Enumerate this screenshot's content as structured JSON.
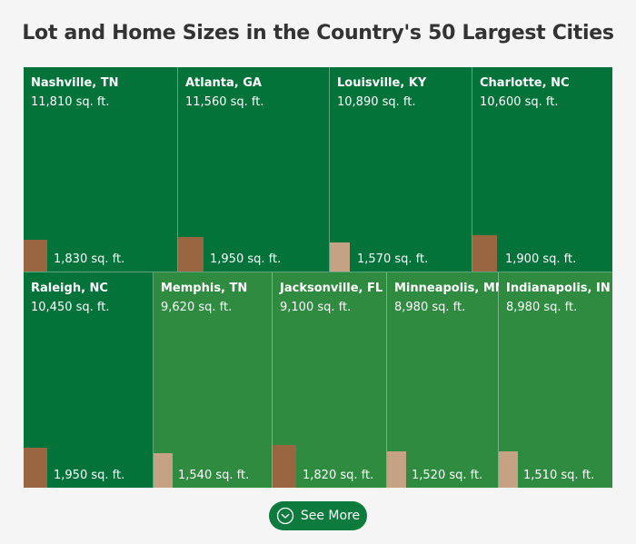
{
  "title": "Lot and Home Sizes in the Country's 50 Largest Cities",
  "colors": {
    "dark_green": "#03733a",
    "light_green": "#2e8b40",
    "brown": "#9a6641",
    "tan": "#c4a283"
  },
  "cities": [
    {
      "city": "Nashville, TN",
      "lot": "11,810 sq. ft.",
      "home": "1,830 sq. ft.",
      "bg": "#03733a",
      "home_color": "#9a6641"
    },
    {
      "city": "Atlanta, GA",
      "lot": "11,560 sq. ft.",
      "home": "1,950 sq. ft.",
      "bg": "#03733a",
      "home_color": "#9a6641"
    },
    {
      "city": "Louisville, KY",
      "lot": "10,890 sq. ft.",
      "home": "1,570 sq. ft.",
      "bg": "#03733a",
      "home_color": "#c4a283"
    },
    {
      "city": "Charlotte, NC",
      "lot": "10,600 sq. ft.",
      "home": "1,900 sq. ft.",
      "bg": "#03733a",
      "home_color": "#9a6641"
    },
    {
      "city": "Raleigh, NC",
      "lot": "10,450 sq. ft.",
      "home": "1,950 sq. ft.",
      "bg": "#03733a",
      "home_color": "#9a6641"
    },
    {
      "city": "Memphis, TN",
      "lot": "9,620 sq. ft.",
      "home": "1,540 sq. ft.",
      "bg": "#2e8b40",
      "home_color": "#c4a283"
    },
    {
      "city": "Jacksonville, FL",
      "lot": "9,100 sq. ft.",
      "home": "1,820 sq. ft.",
      "bg": "#2e8b40",
      "home_color": "#9a6641"
    },
    {
      "city": "Minneapolis, MN",
      "lot": "8,980 sq. ft.",
      "home": "1,520 sq. ft.",
      "bg": "#2e8b40",
      "home_color": "#c4a283"
    },
    {
      "city": "Indianapolis, IN",
      "lot": "8,980 sq. ft.",
      "home": "1,510 sq. ft.",
      "bg": "#2e8b40",
      "home_color": "#c4a283"
    }
  ],
  "see_more_label": "See More"
}
